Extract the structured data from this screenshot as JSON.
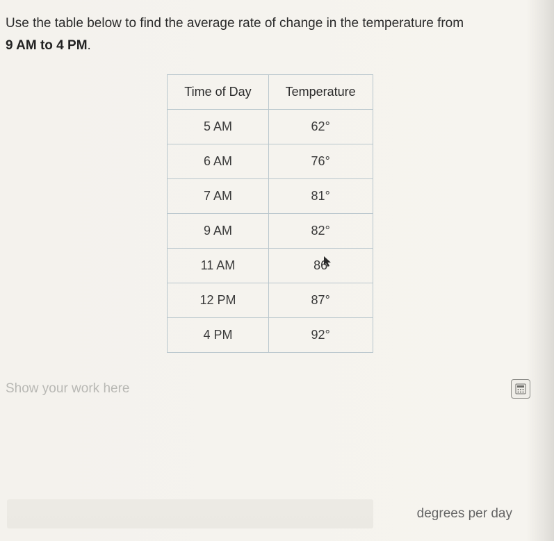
{
  "question": {
    "prefix": "Use the table below to find the average rate of change in the temperature from",
    "bold_range": "9 AM to 4 PM",
    "suffix": "."
  },
  "table": {
    "headers": [
      "Time of Day",
      "Temperature"
    ],
    "rows": [
      {
        "time": "5 AM",
        "temp": "62°"
      },
      {
        "time": "6 AM",
        "temp": "76°"
      },
      {
        "time": "7 AM",
        "temp": "81°"
      },
      {
        "time": "9 AM",
        "temp": "82°"
      },
      {
        "time": "11 AM",
        "temp": "86",
        "has_cursor": true
      },
      {
        "time": "12 PM",
        "temp": "87°"
      },
      {
        "time": "4 PM",
        "temp": "92°"
      }
    ],
    "border_color": "#b8c6cc",
    "text_color": "#3a3a3a"
  },
  "work_label": "Show your work here",
  "unit_label": "degrees per day",
  "colors": {
    "background": "#f4f2ed",
    "question_text": "#2a2a2a",
    "placeholder": "#b8b8b4",
    "unit_text": "#666"
  }
}
